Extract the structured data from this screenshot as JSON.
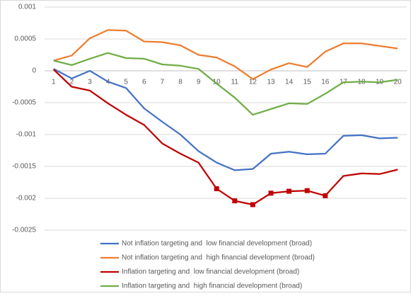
{
  "chart_data": {
    "type": "line",
    "categories": [
      "1",
      "2",
      "3",
      "4",
      "5",
      "6",
      "7",
      "8",
      "9",
      "10",
      "11",
      "12",
      "13",
      "14",
      "15",
      "16",
      "17",
      "18",
      "19",
      "20"
    ],
    "ylim": [
      -0.0025,
      0.001
    ],
    "yticks": [
      0.001,
      0.0005,
      0,
      -0.0005,
      -0.001,
      -0.0015,
      -0.002,
      -0.0025
    ],
    "grid": true,
    "legend": "bottom",
    "series": [
      {
        "name": "Not inflation targeting and  low financial development (broad)",
        "color": "#4472c4",
        "values": [
          3e-05,
          -0.00012,
          0,
          -0.00017,
          -0.00027,
          -0.00059,
          -0.0008,
          -0.001,
          -0.00126,
          -0.00144,
          -0.00156,
          -0.00154,
          -0.0013,
          -0.00127,
          -0.00131,
          -0.0013,
          -0.00102,
          -0.00101,
          -0.00106,
          -0.00105
        ]
      },
      {
        "name": "Not inflation targeting and  high financial development (broad)",
        "color": "#ed7d31",
        "values": [
          0.00016,
          0.00024,
          0.00051,
          0.00064,
          0.00063,
          0.00046,
          0.00045,
          0.0004,
          0.00025,
          0.00021,
          7e-05,
          -0.00013,
          2e-05,
          0.00012,
          6e-05,
          0.0003,
          0.00043,
          0.00043,
          0.00039,
          0.00035
        ]
      },
      {
        "name": "Inflation targeting and  low financial development (broad)",
        "color": "#c00000",
        "values": [
          2e-05,
          -0.00025,
          -0.00031,
          -0.00051,
          -0.00069,
          -0.00085,
          -0.00114,
          -0.0013,
          -0.00144,
          -0.00185,
          -0.00204,
          -0.0021,
          -0.00192,
          -0.00189,
          -0.00188,
          -0.00196,
          -0.00165,
          -0.00161,
          -0.00162,
          -0.00155
        ],
        "markers": [
          false,
          false,
          false,
          false,
          false,
          false,
          false,
          false,
          false,
          true,
          true,
          true,
          true,
          true,
          true,
          true,
          false,
          false,
          false,
          false
        ]
      },
      {
        "name": "Inflation targeting and  high financial development (broad)",
        "color": "#70ad47",
        "values": [
          0.00016,
          9e-05,
          0.00019,
          0.00028,
          0.0002,
          0.00019,
          0.0001,
          8e-05,
          3e-05,
          -0.0002,
          -0.00042,
          -0.00069,
          -0.0006,
          -0.00051,
          -0.00052,
          -0.00036,
          -0.00018,
          -0.00017,
          -0.00018,
          -0.00014
        ]
      }
    ]
  }
}
